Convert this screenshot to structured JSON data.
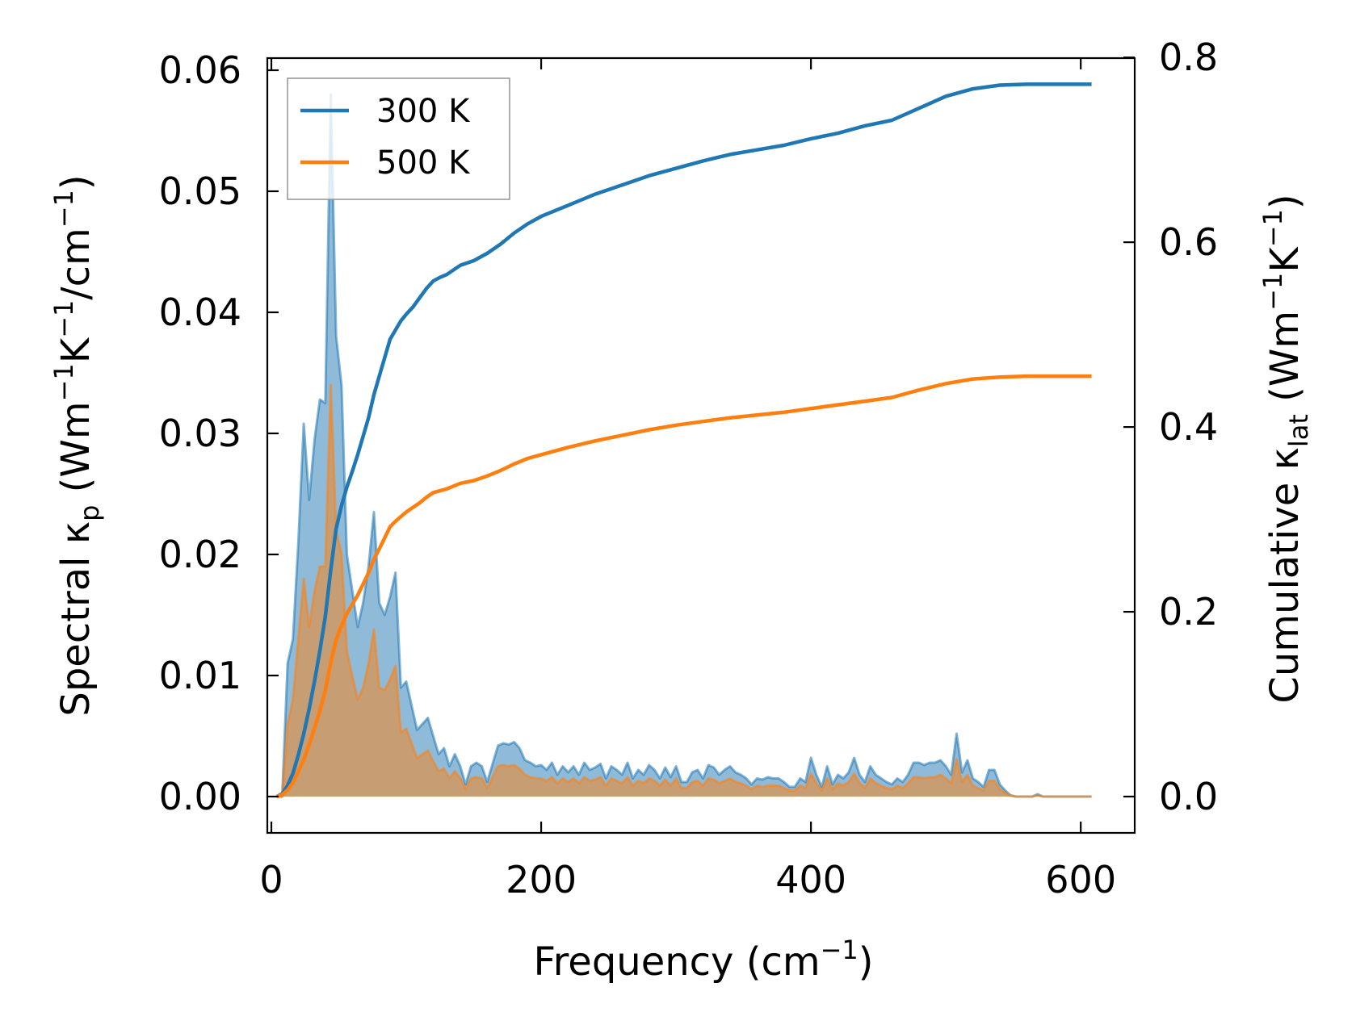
{
  "chart_data": {
    "type": "line",
    "title": "",
    "xlabel": {
      "text": "Frequency (cm",
      "sup": "−1",
      "close": ")"
    },
    "ylabel_left": {
      "prefix": "Spectral κ",
      "sub": "p",
      "mid1": " (Wm",
      "sup1": "−1",
      "mid2": "K",
      "sup2": "−1",
      "mid3": "/cm",
      "sup3": "−1",
      "close": ")"
    },
    "ylabel_right": {
      "prefix": "Cumulative κ",
      "sub": "lat",
      "mid1": " (Wm",
      "sup1": "−1",
      "mid2": "K",
      "sup2": "−1",
      "close": ")"
    },
    "xlim": [
      -3,
      640
    ],
    "ylim_left": [
      -0.003,
      0.061
    ],
    "ylim_right": [
      -0.0393,
      0.7993
    ],
    "xticks": [
      0,
      200,
      400,
      600
    ],
    "xtick_labels": [
      "0",
      "200",
      "400",
      "600"
    ],
    "yticks_left": [
      0,
      0.01,
      0.02,
      0.03,
      0.04,
      0.05,
      0.06
    ],
    "ytick_labels_left": [
      "0.00",
      "0.01",
      "0.02",
      "0.03",
      "0.04",
      "0.05",
      "0.06"
    ],
    "yticks_right": [
      0,
      0.2,
      0.4,
      0.6,
      0.8
    ],
    "ytick_labels_right": [
      "0.0",
      "0.2",
      "0.4",
      "0.6",
      "0.8"
    ],
    "grid": false,
    "legend_position": "top-left",
    "legend": [
      {
        "label": "300 K",
        "color": "#1f77b4"
      },
      {
        "label": "500 K",
        "color": "#ff7f0e"
      }
    ],
    "spectral_x": [
      4,
      8,
      12,
      16,
      20,
      24,
      28,
      32,
      36,
      40,
      44,
      48,
      52,
      56,
      60,
      64,
      68,
      72,
      76,
      80,
      84,
      88,
      92,
      96,
      100,
      104,
      108,
      112,
      116,
      120,
      124,
      128,
      132,
      136,
      140,
      144,
      148,
      152,
      156,
      160,
      164,
      168,
      172,
      176,
      180,
      184,
      188,
      192,
      196,
      200,
      204,
      208,
      212,
      216,
      220,
      224,
      228,
      232,
      236,
      240,
      244,
      248,
      252,
      256,
      260,
      264,
      268,
      272,
      276,
      280,
      284,
      288,
      292,
      296,
      300,
      304,
      308,
      312,
      316,
      320,
      324,
      328,
      332,
      336,
      340,
      344,
      348,
      352,
      356,
      360,
      364,
      368,
      372,
      376,
      380,
      384,
      388,
      392,
      396,
      400,
      404,
      408,
      412,
      416,
      420,
      424,
      428,
      432,
      436,
      440,
      444,
      448,
      452,
      456,
      460,
      464,
      468,
      472,
      476,
      480,
      484,
      488,
      492,
      496,
      500,
      504,
      508,
      512,
      516,
      520,
      524,
      528,
      532,
      536,
      540,
      544,
      548,
      552,
      556,
      560,
      564,
      568,
      572,
      576,
      580,
      584,
      588,
      592,
      596,
      600,
      604,
      608
    ],
    "series": [
      {
        "name": "300 K",
        "color": "#1f77b4",
        "spectral": [
          0,
          0,
          0.011,
          0.013,
          0.021,
          0.0308,
          0.0245,
          0.0295,
          0.0328,
          0.0325,
          0.058,
          0.038,
          0.034,
          0.02,
          0.017,
          0.014,
          0.016,
          0.019,
          0.0235,
          0.016,
          0.015,
          0.0165,
          0.0185,
          0.009,
          0.0095,
          0.0075,
          0.0055,
          0.006,
          0.0065,
          0.005,
          0.0035,
          0.004,
          0.0025,
          0.0035,
          0.0025,
          0.001,
          0.0025,
          0.0028,
          0.0025,
          0.0012,
          0.0027,
          0.0042,
          0.0044,
          0.0043,
          0.0045,
          0.004,
          0.003,
          0.0028,
          0.0025,
          0.0026,
          0.0022,
          0.0028,
          0.0018,
          0.0025,
          0.002,
          0.0025,
          0.0018,
          0.0028,
          0.0022,
          0.0024,
          0.0027,
          0.0015,
          0.0025,
          0.0022,
          0.0018,
          0.0028,
          0.0015,
          0.0022,
          0.0018,
          0.0026,
          0.0022,
          0.0015,
          0.0024,
          0.0016,
          0.0025,
          0.0012,
          0.0012,
          0.002,
          0.0022,
          0.0015,
          0.0026,
          0.0024,
          0.0018,
          0.0022,
          0.0025,
          0.002,
          0.0018,
          0.0015,
          0.001,
          0.0015,
          0.0014,
          0.0016,
          0.0015,
          0.0015,
          0.0012,
          0.0008,
          0.0008,
          0.0015,
          0.0012,
          0.0032,
          0.0018,
          0.0008,
          0.0025,
          0.001,
          0.0018,
          0.0015,
          0.002,
          0.0032,
          0.0018,
          0.0012,
          0.0025,
          0.0018,
          0.0015,
          0.0012,
          0.001,
          0.0015,
          0.0012,
          0.0018,
          0.0028,
          0.0028,
          0.0026,
          0.0028,
          0.0028,
          0.003,
          0.0025,
          0.0018,
          0.0052,
          0.002,
          0.003,
          0.0015,
          0.0012,
          0.0008,
          0.0022,
          0.0022,
          0.001,
          0.0005,
          0.0001,
          0,
          0,
          0,
          0,
          0.0002,
          0,
          0,
          0,
          0,
          0,
          0,
          0,
          0,
          0,
          0
        ],
        "cumulative_x": [
          4,
          8,
          12,
          16,
          20,
          24,
          28,
          32,
          36,
          40,
          44,
          48,
          52,
          56,
          60,
          64,
          68,
          72,
          76,
          80,
          84,
          88,
          92,
          96,
          100,
          105,
          110,
          115,
          120,
          125,
          130,
          140,
          150,
          160,
          170,
          180,
          190,
          200,
          220,
          240,
          260,
          280,
          300,
          320,
          340,
          360,
          380,
          400,
          420,
          440,
          460,
          480,
          500,
          520,
          540,
          560,
          580,
          608
        ],
        "cumulative": [
          0,
          0.003,
          0.012,
          0.025,
          0.045,
          0.068,
          0.095,
          0.125,
          0.158,
          0.195,
          0.245,
          0.29,
          0.315,
          0.335,
          0.352,
          0.37,
          0.39,
          0.41,
          0.435,
          0.455,
          0.475,
          0.495,
          0.505,
          0.515,
          0.522,
          0.53,
          0.54,
          0.55,
          0.558,
          0.562,
          0.565,
          0.575,
          0.58,
          0.588,
          0.598,
          0.61,
          0.62,
          0.628,
          0.64,
          0.652,
          0.662,
          0.672,
          0.68,
          0.688,
          0.695,
          0.7,
          0.705,
          0.712,
          0.718,
          0.726,
          0.732,
          0.745,
          0.758,
          0.766,
          0.77,
          0.771,
          0.771,
          0.771
        ]
      },
      {
        "name": "500 K",
        "color": "#ff7f0e",
        "spectral": [
          0,
          0,
          0.006,
          0.008,
          0.013,
          0.018,
          0.014,
          0.017,
          0.019,
          0.019,
          0.034,
          0.022,
          0.02,
          0.012,
          0.01,
          0.008,
          0.009,
          0.011,
          0.0138,
          0.009,
          0.0088,
          0.0097,
          0.0108,
          0.0053,
          0.0056,
          0.0044,
          0.0032,
          0.0035,
          0.0038,
          0.0029,
          0.0021,
          0.0023,
          0.0015,
          0.0021,
          0.0015,
          0.0006,
          0.0015,
          0.0016,
          0.0015,
          0.0007,
          0.0016,
          0.0025,
          0.0026,
          0.0025,
          0.0026,
          0.0023,
          0.0018,
          0.0016,
          0.0015,
          0.0015,
          0.0013,
          0.0016,
          0.0011,
          0.0015,
          0.0012,
          0.0015,
          0.0011,
          0.0016,
          0.0013,
          0.0014,
          0.0016,
          0.0009,
          0.0015,
          0.0013,
          0.0011,
          0.0016,
          0.0009,
          0.0013,
          0.0011,
          0.0015,
          0.0013,
          0.0009,
          0.0014,
          0.0009,
          0.0015,
          0.0007,
          0.0007,
          0.0012,
          0.0013,
          0.0009,
          0.0015,
          0.0014,
          0.0011,
          0.0013,
          0.0015,
          0.0012,
          0.0011,
          0.0009,
          0.0006,
          0.0009,
          0.0008,
          0.0009,
          0.0009,
          0.0009,
          0.0007,
          0.0005,
          0.0005,
          0.0009,
          0.0007,
          0.0019,
          0.0011,
          0.0005,
          0.0015,
          0.0006,
          0.0011,
          0.0009,
          0.0012,
          0.0019,
          0.0011,
          0.0007,
          0.0015,
          0.0011,
          0.0009,
          0.0007,
          0.0006,
          0.0009,
          0.0007,
          0.0011,
          0.0016,
          0.0016,
          0.0015,
          0.0016,
          0.0016,
          0.0018,
          0.0015,
          0.0011,
          0.0031,
          0.0012,
          0.0018,
          0.0009,
          0.0007,
          0.0005,
          0.0013,
          0.0013,
          0.0006,
          0.0003,
          0.0001,
          0,
          0,
          0,
          0,
          0.0001,
          0,
          0,
          0,
          0,
          0,
          0,
          0,
          0,
          0,
          0
        ],
        "cumulative_x": [
          4,
          8,
          12,
          16,
          20,
          24,
          28,
          32,
          36,
          40,
          44,
          48,
          52,
          56,
          60,
          64,
          68,
          72,
          76,
          80,
          84,
          88,
          92,
          96,
          100,
          105,
          110,
          115,
          120,
          125,
          130,
          140,
          150,
          160,
          170,
          180,
          190,
          200,
          220,
          240,
          260,
          280,
          300,
          320,
          340,
          360,
          380,
          400,
          420,
          440,
          460,
          480,
          500,
          520,
          540,
          560,
          580,
          608
        ],
        "cumulative": [
          0,
          0.002,
          0.007,
          0.015,
          0.027,
          0.04,
          0.056,
          0.074,
          0.093,
          0.115,
          0.145,
          0.17,
          0.185,
          0.198,
          0.208,
          0.218,
          0.23,
          0.242,
          0.257,
          0.268,
          0.28,
          0.292,
          0.298,
          0.303,
          0.308,
          0.313,
          0.318,
          0.324,
          0.329,
          0.331,
          0.333,
          0.339,
          0.342,
          0.347,
          0.353,
          0.36,
          0.366,
          0.37,
          0.378,
          0.385,
          0.391,
          0.397,
          0.402,
          0.406,
          0.41,
          0.413,
          0.416,
          0.42,
          0.424,
          0.428,
          0.432,
          0.44,
          0.447,
          0.452,
          0.454,
          0.455,
          0.455,
          0.455
        ]
      }
    ]
  }
}
